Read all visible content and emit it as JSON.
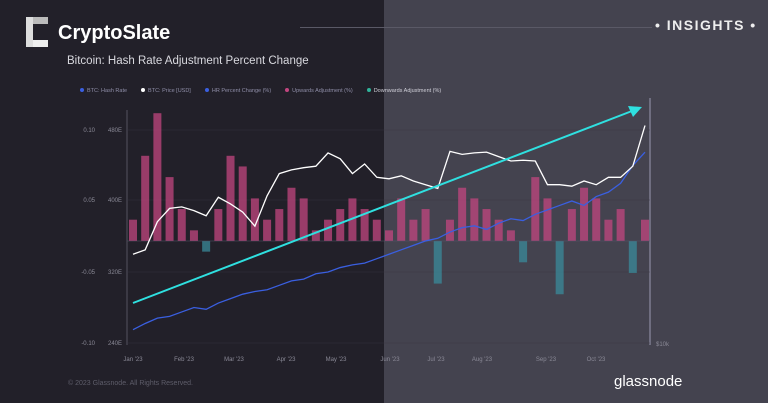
{
  "brand": "CryptoSlate",
  "badge": "INSIGHTS",
  "footer": {
    "copyright": "© 2023 Glassnode. All Rights Reserved.",
    "logo_text": "glassnode"
  },
  "colors": {
    "hash_rate": "#3a5fe0",
    "price": "#ffffff",
    "upwards": "#c2457f",
    "downwards": "#3a8a9a",
    "trend_arrow": "#2fe0e0"
  },
  "chart_data": {
    "type": "line",
    "title": "Bitcoin: Hash Rate Adjustment Percent Change",
    "legend": [
      "BTC: Hash Rate",
      "BTC: Price [USD]",
      "HR Percent Change (%)",
      "Upwards Adjustment (%)",
      "Downwards Adjustment (%)"
    ],
    "legend_position": "top",
    "x_ticks": [
      "Jan '23",
      "Feb '23",
      "Mar '23",
      "Apr '23",
      "May '23",
      "Jun '23",
      "Jul '23",
      "Aug '23",
      "Sep '23",
      "Oct '23"
    ],
    "y_left_ticks": [
      "0.10",
      "0.05",
      "-0.05",
      "-0.10"
    ],
    "y_hash_ticks": [
      "480E",
      "400E",
      "320E",
      "240E"
    ],
    "y_right_tick": "$10k",
    "hash_ylim": [
      240,
      480
    ],
    "change_ylim": [
      -0.1,
      0.1
    ],
    "series": {
      "hash_rate": [
        255,
        262,
        268,
        270,
        275,
        280,
        278,
        285,
        290,
        295,
        298,
        300,
        305,
        310,
        312,
        318,
        320,
        325,
        328,
        330,
        335,
        340,
        345,
        350,
        355,
        358,
        365,
        370,
        372,
        368,
        375,
        380,
        378,
        385,
        390,
        395,
        400,
        395,
        405,
        410,
        420,
        440,
        455
      ],
      "price_k": [
        16.6,
        17.2,
        21,
        22.8,
        23,
        22.5,
        21.8,
        24.3,
        23.4,
        22.3,
        20.4,
        24.5,
        27.5,
        28,
        28.3,
        28.5,
        30.3,
        29.5,
        27.5,
        28.8,
        27,
        26.8,
        27.2,
        26.5,
        26,
        25.5,
        30.5,
        30.1,
        30.3,
        30.4,
        29.8,
        29.2,
        29.3,
        29.2,
        26,
        26,
        25.8,
        26.5,
        26,
        27,
        27,
        28.5,
        34
      ],
      "hr_change": [
        0.02,
        0.08,
        0.12,
        0.06,
        0.03,
        0.01,
        -0.01,
        0.03,
        0.08,
        0.07,
        0.04,
        0.02,
        0.03,
        0.05,
        0.04,
        0.01,
        0.02,
        0.03,
        0.04,
        0.03,
        0.02,
        0.01,
        0.04,
        0.02,
        0.03,
        -0.04,
        0.02,
        0.05,
        0.04,
        0.03,
        0.02,
        0.01,
        -0.02,
        0.06,
        0.04,
        -0.05,
        0.03,
        0.05,
        0.04,
        0.02,
        0.03,
        -0.03,
        0.02
      ]
    }
  }
}
